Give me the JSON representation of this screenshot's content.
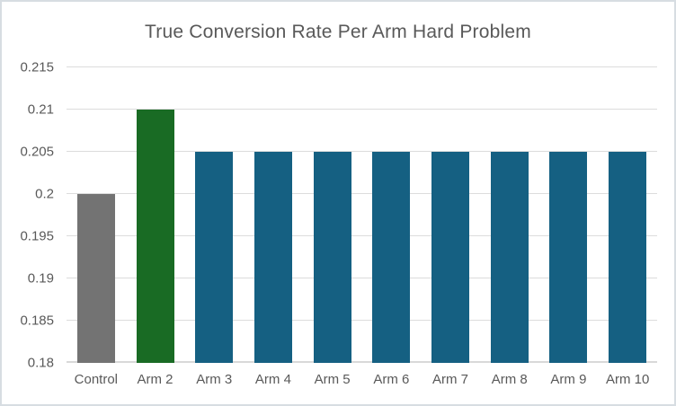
{
  "chart_data": {
    "type": "bar",
    "title": "True Conversion Rate Per Arm Hard Problem",
    "categories": [
      "Control",
      "Arm 2",
      "Arm 3",
      "Arm 4",
      "Arm 5",
      "Arm 6",
      "Arm 7",
      "Arm 8",
      "Arm 9",
      "Arm 10"
    ],
    "values": [
      0.2,
      0.21,
      0.205,
      0.205,
      0.205,
      0.205,
      0.205,
      0.205,
      0.205,
      0.205
    ],
    "bar_colors": [
      "#737373",
      "#196B24",
      "#156082",
      "#156082",
      "#156082",
      "#156082",
      "#156082",
      "#156082",
      "#156082",
      "#156082"
    ],
    "xlabel": "",
    "ylabel": "",
    "ylim": [
      0.18,
      0.215
    ],
    "yticks": [
      0.18,
      0.185,
      0.19,
      0.195,
      0.2,
      0.205,
      0.21,
      0.215
    ],
    "ytick_labels": [
      "0.18",
      "0.185",
      "0.19",
      "0.195",
      "0.2",
      "0.205",
      "0.21",
      "0.215"
    ],
    "grid": true,
    "legend": "none",
    "colors": {
      "grid": "#DCDCDC",
      "baseline": "#D9D9D9",
      "title_text": "#595959",
      "axis_text": "#595959",
      "control_bar": "#737373",
      "highlight_bar": "#196B24",
      "default_bar": "#156082",
      "background": "#FFFFFF",
      "border": "#D7DDE2"
    }
  }
}
